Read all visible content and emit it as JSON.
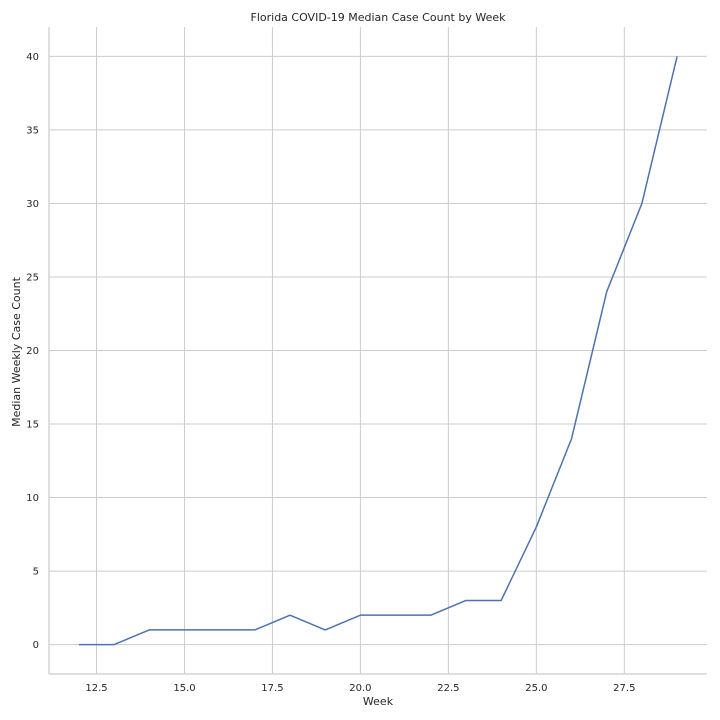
{
  "chart_data": {
    "type": "line",
    "title": "Florida COVID-19 Median Case Count by Week",
    "xlabel": "Week",
    "ylabel": "Median Weekly Case Count",
    "x": [
      12,
      13,
      14,
      15,
      16,
      17,
      18,
      19,
      20,
      21,
      22,
      23,
      24,
      25,
      26,
      27,
      28,
      29
    ],
    "series": [
      {
        "values": [
          0,
          0,
          1,
          1,
          1,
          1,
          2,
          1,
          2,
          2,
          2,
          3,
          3,
          8,
          14,
          24,
          30,
          40
        ]
      }
    ],
    "xlim": [
      11.15,
      29.85
    ],
    "ylim": [
      -2,
      42
    ],
    "xticks": [
      12.5,
      15.0,
      17.5,
      20.0,
      22.5,
      25.0,
      27.5
    ],
    "xtick_labels": [
      "12.5",
      "15.0",
      "17.5",
      "20.0",
      "22.5",
      "25.0",
      "27.5"
    ],
    "yticks": [
      0,
      5,
      10,
      15,
      20,
      25,
      30,
      35,
      40
    ],
    "ytick_labels": [
      "0",
      "5",
      "10",
      "15",
      "20",
      "25",
      "30",
      "35",
      "40"
    ],
    "grid": true,
    "colors": {
      "line": "#4c72b0",
      "grid": "#cccccc",
      "text": "#262626"
    }
  }
}
